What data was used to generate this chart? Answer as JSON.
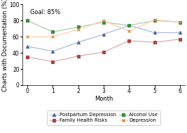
{
  "xlabel": "Month",
  "ylabel": "Charts with Documentation (%)",
  "goal_text": "Goal: 85%",
  "goal_y": 85,
  "xlim": [
    -0.2,
    6.2
  ],
  "ylim": [
    0,
    100
  ],
  "yticks": [
    0,
    20,
    40,
    60,
    80,
    100
  ],
  "xticks": [
    0,
    1,
    2,
    3,
    4,
    5,
    6
  ],
  "months": [
    0,
    1,
    2,
    3,
    4,
    5,
    6
  ],
  "series": {
    "Postpartum Depression": {
      "values": [
        48,
        42,
        53,
        63,
        74,
        65,
        65
      ],
      "line_color": "#AABBDD",
      "marker_color": "#5566AA",
      "marker": "^"
    },
    "Family Health Risks": {
      "values": [
        35,
        29,
        36,
        41,
        55,
        53,
        57
      ],
      "line_color": "#DDAAAA",
      "marker_color": "#AA4444",
      "marker": "s"
    },
    "Alcohol Use": {
      "values": [
        80,
        66,
        72,
        78,
        74,
        80,
        78
      ],
      "line_color": "#AACCAA",
      "marker_color": "#448844",
      "marker": "s"
    },
    "Depression": {
      "values": [
        60,
        60,
        69,
        80,
        67,
        81,
        78
      ],
      "line_color": "#FFCCAA",
      "marker_color": "#CC8833",
      "marker": "x"
    }
  },
  "series_order": [
    "Postpartum Depression",
    "Family Health Risks",
    "Alcohol Use",
    "Depression"
  ],
  "legend_order": [
    "Postpartum Depression",
    "Family Health Risks",
    "Alcohol Use",
    "Depression"
  ],
  "background_color": "#FFFFFF",
  "legend_fontsize": 5.0,
  "axis_fontsize": 6.0,
  "tick_fontsize": 5.5,
  "goal_fontsize": 6.0,
  "linewidth": 0.9,
  "markersize": 3.0
}
